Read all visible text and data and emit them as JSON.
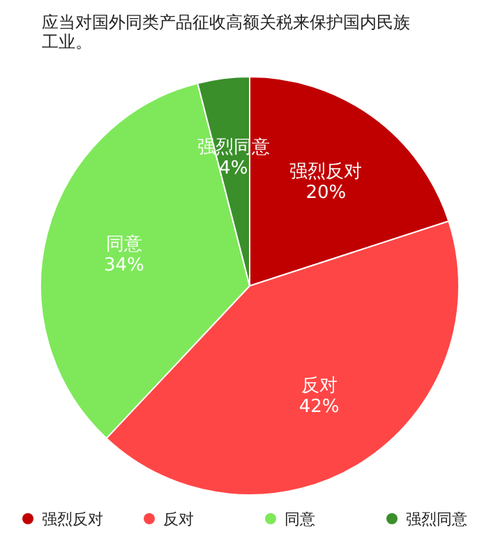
{
  "chart_data": {
    "type": "pie",
    "title": "应当对国外同类产品征收高额关税来保护国内民族工业。",
    "categories": [
      "强烈反对",
      "反对",
      "同意",
      "强烈同意"
    ],
    "values": [
      20,
      42,
      34,
      4
    ],
    "value_labels": [
      "20%",
      "42%",
      "34%",
      "4%"
    ],
    "colors": [
      "#c00000",
      "#ff4646",
      "#7ee85a",
      "#3a8f2a"
    ],
    "legend": "bottom"
  }
}
